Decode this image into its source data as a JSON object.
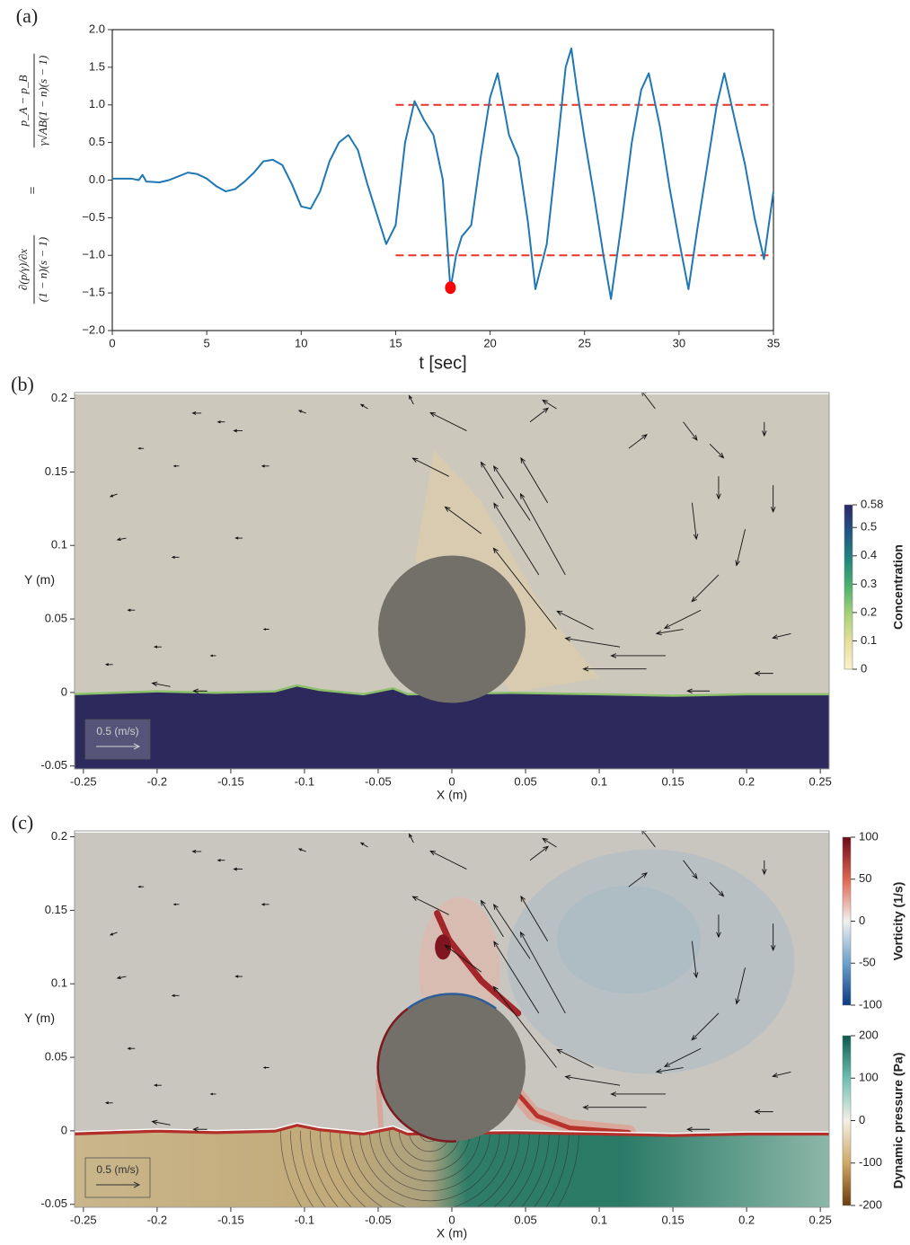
{
  "chart_data": [
    {
      "type": "line",
      "panel_label": "(a)",
      "xlabel": "t [sec]",
      "ylabel": {
        "lhs_num": "∂(p/γ)/∂x",
        "lhs_den": "(1 − n)(s − 1)",
        "eq": "=",
        "rhs_num": "p_A − p_B",
        "rhs_den": "γ√AB(1 − n)(s − 1)"
      },
      "xlim": [
        0,
        35
      ],
      "ylim": [
        -2,
        2
      ],
      "xticks": [
        0,
        5,
        10,
        15,
        20,
        25,
        30,
        35
      ],
      "yticks": [
        {
          "value": -2,
          "label": "−2.0"
        },
        {
          "value": -1.5,
          "label": "−1.5"
        },
        {
          "value": -1,
          "label": "−1.0"
        },
        {
          "value": -0.5,
          "label": "−0.5"
        },
        {
          "value": 0,
          "label": "0.0"
        },
        {
          "value": 0.5,
          "label": "0.5"
        },
        {
          "value": 1,
          "label": "1.0"
        },
        {
          "value": 1.5,
          "label": "1.5"
        },
        {
          "value": 2,
          "label": "2.0"
        }
      ],
      "color": "#1f77b4",
      "x": [
        0,
        0.5,
        1,
        1.4,
        1.6,
        1.8,
        2.5,
        3,
        3.5,
        4,
        4.5,
        5,
        5.5,
        6,
        6.5,
        7,
        7.5,
        8,
        8.5,
        9,
        9.5,
        10,
        10.5,
        11,
        11.5,
        12,
        12.5,
        13,
        13.5,
        14,
        14.5,
        15,
        15.5,
        16,
        16.5,
        17,
        17.5,
        17.9,
        18.2,
        18.5,
        19,
        19.5,
        20,
        20.4,
        21,
        21.5,
        22,
        22.4,
        23,
        23.5,
        24,
        24.3,
        24.6,
        25,
        25.5,
        26,
        26.4,
        27,
        27.5,
        28,
        28.4,
        29,
        29.5,
        30,
        30.5,
        31,
        31.5,
        32,
        32.4,
        33,
        33.5,
        34,
        34.5,
        35
      ],
      "values": [
        0.02,
        0.02,
        0.02,
        0.0,
        0.07,
        -0.02,
        -0.03,
        0.0,
        0.05,
        0.1,
        0.08,
        0.02,
        -0.08,
        -0.15,
        -0.12,
        -0.02,
        0.1,
        0.25,
        0.27,
        0.2,
        -0.05,
        -0.35,
        -0.38,
        -0.15,
        0.25,
        0.5,
        0.6,
        0.4,
        -0.05,
        -0.45,
        -0.85,
        -0.6,
        0.5,
        1.05,
        0.8,
        0.6,
        0.0,
        -1.45,
        -1.0,
        -0.75,
        -0.6,
        0.3,
        1.1,
        1.42,
        0.6,
        0.3,
        -0.55,
        -1.45,
        -0.85,
        0.3,
        1.5,
        1.75,
        1.2,
        0.55,
        -0.2,
        -1.0,
        -1.58,
        -0.5,
        0.5,
        1.2,
        1.42,
        0.7,
        -0.1,
        -0.8,
        -1.45,
        -0.6,
        0.2,
        1.0,
        1.42,
        0.75,
        0.2,
        -0.5,
        -1.05,
        -0.15
      ],
      "reference_lines": [
        {
          "y": 1,
          "x": [
            15,
            35
          ],
          "color": "#e8332a"
        },
        {
          "y": -1,
          "x": [
            15,
            35
          ],
          "color": "#e8332a"
        }
      ],
      "marker": {
        "x": 17.9,
        "y": -1.43,
        "color": "#ff0000"
      }
    },
    {
      "type": "field",
      "panel_label": "(b)",
      "xlabel": "X (m)",
      "ylabel": "Y (m)",
      "xlim": [
        -0.256,
        0.256
      ],
      "ylim": [
        -0.052,
        0.204
      ],
      "xticks": [
        -0.25,
        -0.2,
        -0.15,
        -0.1,
        -0.05,
        0,
        0.05,
        0.1,
        0.15,
        0.2,
        0.25
      ],
      "yticks": [
        -0.05,
        0,
        0.05,
        0.1,
        0.15,
        0.2
      ],
      "cylinder": {
        "x": 0,
        "y": 0.043,
        "radius": 0.05,
        "color": "#737069"
      },
      "arrow_color": "#111111",
      "quiver_key": {
        "value": 0.5,
        "label": "0.5 (m/s)"
      },
      "arrows": {
        "x": [
          -0.17,
          -0.154,
          -0.209,
          -0.227,
          -0.185,
          -0.142,
          -0.124,
          -0.221,
          -0.185,
          -0.142,
          -0.215,
          -0.197,
          -0.16,
          -0.23,
          -0.191,
          -0.166,
          -0.124,
          -0.099,
          -0.057,
          -0.026,
          -0.002,
          0.071,
          0.059,
          0.077,
          0.053,
          0.065,
          0.035,
          0.02,
          0.01,
          0.053,
          0.071,
          0.12,
          0.138,
          0.157,
          0.175,
          0.212,
          0.163,
          0.181,
          0.218,
          0.199,
          0.181,
          0.169,
          0.157,
          0.145,
          0.132,
          0.114,
          0.096,
          0.23,
          0.218,
          0.175
        ],
        "y": [
          0.19,
          0.184,
          0.166,
          0.135,
          0.154,
          0.178,
          0.154,
          0.105,
          0.092,
          0.105,
          0.056,
          0.031,
          0.025,
          0.019,
          0.004,
          0.001,
          0.043,
          0.19,
          0.193,
          0.196,
          0.147,
          0.043,
          0.08,
          0.08,
          0.117,
          0.129,
          0.132,
          0.108,
          0.178,
          0.184,
          0.193,
          0.166,
          0.193,
          0.184,
          0.169,
          0.184,
          0.129,
          0.147,
          0.141,
          0.111,
          0.08,
          0.056,
          0.043,
          0.025,
          0.016,
          0.031,
          0.043,
          0.04,
          0.013,
          0.001
        ],
        "u": [
          -0.1,
          -0.08,
          -0.06,
          -0.08,
          -0.06,
          -0.1,
          -0.08,
          -0.1,
          -0.08,
          -0.08,
          -0.08,
          -0.08,
          -0.06,
          -0.08,
          -0.21,
          -0.16,
          -0.06,
          -0.08,
          -0.08,
          -0.05,
          -0.42,
          -0.73,
          -0.52,
          -0.52,
          -0.42,
          -0.31,
          -0.26,
          -0.42,
          -0.42,
          0.21,
          -0.16,
          0.21,
          -0.16,
          0.16,
          0.16,
          0,
          0.05,
          0,
          0,
          -0.1,
          -0.31,
          -0.42,
          -0.31,
          -0.63,
          -0.73,
          -0.63,
          -0.42,
          -0.21,
          -0.21,
          -0.26
        ],
        "v": [
          0,
          0,
          0,
          -0.03,
          0,
          0,
          0,
          -0.02,
          0,
          0,
          0,
          0,
          0,
          0,
          0.04,
          0,
          0,
          0.03,
          0.05,
          0.1,
          0.21,
          0.94,
          0.83,
          0.94,
          0.63,
          0.52,
          0.42,
          0.31,
          0.21,
          0.16,
          0.1,
          0.16,
          0.21,
          -0.21,
          -0.16,
          -0.16,
          -0.42,
          -0.26,
          -0.31,
          -0.42,
          -0.31,
          -0.21,
          -0.05,
          0,
          0,
          0.1,
          0.21,
          -0.05,
          0,
          0
        ]
      },
      "colorbars": [
        {
          "label": "Concentration",
          "lim": [
            0,
            0.58
          ],
          "ticks": [
            0,
            0.1,
            0.2,
            0.3,
            0.4,
            0.5,
            0.58
          ],
          "colormap": [
            "#fcf1cc",
            "#e6df9c",
            "#a9d277",
            "#4fb26e",
            "#22867c",
            "#235585",
            "#2e2766"
          ]
        }
      ]
    },
    {
      "type": "field",
      "panel_label": "(c)",
      "xlabel": "X (m)",
      "ylabel": "Y (m)",
      "xlim": [
        -0.256,
        0.256
      ],
      "ylim": [
        -0.052,
        0.204
      ],
      "xticks": [
        -0.25,
        -0.2,
        -0.15,
        -0.1,
        -0.05,
        0,
        0.05,
        0.1,
        0.15,
        0.2,
        0.25
      ],
      "yticks": [
        -0.05,
        0,
        0.05,
        0.1,
        0.15,
        0.2
      ],
      "cylinder": {
        "x": 0,
        "y": 0.043,
        "radius": 0.05,
        "color": "#737069"
      },
      "arrow_color": "#111111",
      "quiver_key": {
        "value": 0.5,
        "label": "0.5 (m/s)"
      },
      "arrows": {
        "x": [
          -0.17,
          -0.154,
          -0.209,
          -0.227,
          -0.185,
          -0.142,
          -0.124,
          -0.221,
          -0.185,
          -0.142,
          -0.215,
          -0.197,
          -0.16,
          -0.23,
          -0.191,
          -0.166,
          -0.124,
          -0.099,
          -0.057,
          -0.026,
          -0.002,
          0.071,
          0.059,
          0.077,
          0.053,
          0.065,
          0.035,
          0.02,
          0.01,
          0.053,
          0.071,
          0.12,
          0.138,
          0.157,
          0.175,
          0.212,
          0.163,
          0.181,
          0.218,
          0.199,
          0.181,
          0.169,
          0.157,
          0.145,
          0.132,
          0.114,
          0.096,
          0.23,
          0.218,
          0.175
        ],
        "y": [
          0.19,
          0.184,
          0.166,
          0.135,
          0.154,
          0.178,
          0.154,
          0.105,
          0.092,
          0.105,
          0.056,
          0.031,
          0.025,
          0.019,
          0.004,
          0.001,
          0.043,
          0.19,
          0.193,
          0.196,
          0.147,
          0.043,
          0.08,
          0.08,
          0.117,
          0.129,
          0.132,
          0.108,
          0.178,
          0.184,
          0.193,
          0.166,
          0.193,
          0.184,
          0.169,
          0.184,
          0.129,
          0.147,
          0.141,
          0.111,
          0.08,
          0.056,
          0.043,
          0.025,
          0.016,
          0.031,
          0.043,
          0.04,
          0.013,
          0.001
        ],
        "u": [
          -0.1,
          -0.08,
          -0.06,
          -0.08,
          -0.06,
          -0.1,
          -0.08,
          -0.1,
          -0.08,
          -0.08,
          -0.08,
          -0.08,
          -0.06,
          -0.08,
          -0.21,
          -0.16,
          -0.06,
          -0.08,
          -0.08,
          -0.05,
          -0.42,
          -0.73,
          -0.52,
          -0.52,
          -0.42,
          -0.31,
          -0.26,
          -0.42,
          -0.42,
          0.21,
          -0.16,
          0.21,
          -0.16,
          0.16,
          0.16,
          0,
          0.05,
          0,
          0,
          -0.1,
          -0.31,
          -0.42,
          -0.31,
          -0.63,
          -0.73,
          -0.63,
          -0.42,
          -0.21,
          -0.21,
          -0.26
        ],
        "v": [
          0,
          0,
          0,
          -0.03,
          0,
          0,
          0,
          -0.02,
          0,
          0,
          0,
          0,
          0,
          0,
          0.04,
          0,
          0,
          0.03,
          0.05,
          0.1,
          0.21,
          0.94,
          0.83,
          0.94,
          0.63,
          0.52,
          0.42,
          0.31,
          0.21,
          0.16,
          0.1,
          0.16,
          0.21,
          -0.21,
          -0.16,
          -0.16,
          -0.42,
          -0.26,
          -0.31,
          -0.42,
          -0.31,
          -0.21,
          -0.05,
          0,
          0,
          0.1,
          0.21,
          -0.05,
          0,
          0
        ]
      },
      "colorbars": [
        {
          "label": "Vorticity (1/s)",
          "lim": [
            -100,
            100
          ],
          "ticks": [
            -100,
            -50,
            0,
            50,
            100
          ],
          "colormap": [
            "#0b3b82",
            "#6aa1cc",
            "#f1f1ef",
            "#e06550",
            "#6b0a1b"
          ]
        },
        {
          "label": "Dynamic pressure (Pa)",
          "lim": [
            -200,
            200
          ],
          "ticks": [
            -200,
            -100,
            0,
            100,
            200
          ],
          "colormap": [
            "#6b3d0a",
            "#cfa865",
            "#f3f0e6",
            "#6cc0b1",
            "#0b5b4d"
          ]
        }
      ]
    }
  ]
}
